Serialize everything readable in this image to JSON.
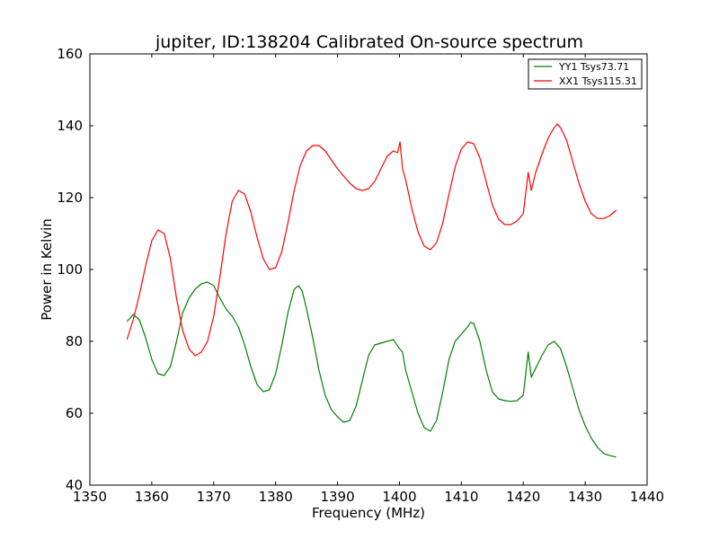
{
  "chart_data": {
    "type": "line",
    "title": "jupiter, ID:138204 Calibrated On-source spectrum",
    "xlabel": "Frequency (MHz)",
    "ylabel": "Power in Kelvin",
    "xlim": [
      1350,
      1440
    ],
    "ylim": [
      40,
      160
    ],
    "xticks": [
      1350,
      1360,
      1370,
      1380,
      1390,
      1400,
      1410,
      1420,
      1430,
      1440
    ],
    "yticks": [
      40,
      60,
      80,
      100,
      120,
      140,
      160
    ],
    "grid": false,
    "legend_position": "top-right",
    "series": [
      {
        "name": "YY1 Tsys73.71",
        "color": "#008000",
        "points": [
          [
            1356,
            85.5
          ],
          [
            1357,
            87.5
          ],
          [
            1358,
            86
          ],
          [
            1359,
            81
          ],
          [
            1360,
            75
          ],
          [
            1361,
            71
          ],
          [
            1362,
            70.5
          ],
          [
            1363,
            73
          ],
          [
            1364,
            80
          ],
          [
            1365,
            88
          ],
          [
            1366,
            92
          ],
          [
            1367,
            94.5
          ],
          [
            1368,
            96
          ],
          [
            1369,
            96.5
          ],
          [
            1370,
            95.5
          ],
          [
            1371,
            92
          ],
          [
            1372,
            89
          ],
          [
            1373,
            87
          ],
          [
            1374,
            84
          ],
          [
            1375,
            79
          ],
          [
            1376,
            73
          ],
          [
            1377,
            68
          ],
          [
            1378,
            66
          ],
          [
            1379,
            66.5
          ],
          [
            1380,
            71
          ],
          [
            1381,
            79
          ],
          [
            1382,
            88
          ],
          [
            1383,
            94.5
          ],
          [
            1383.7,
            95.5
          ],
          [
            1384.3,
            94
          ],
          [
            1385,
            89
          ],
          [
            1386,
            81
          ],
          [
            1387,
            72
          ],
          [
            1388,
            65
          ],
          [
            1389,
            61
          ],
          [
            1390,
            59
          ],
          [
            1391,
            57.5
          ],
          [
            1392,
            58
          ],
          [
            1393,
            62
          ],
          [
            1394,
            69
          ],
          [
            1395,
            76
          ],
          [
            1396,
            79
          ],
          [
            1397,
            79.5
          ],
          [
            1398,
            80
          ],
          [
            1399,
            80.5
          ],
          [
            1400,
            78
          ],
          [
            1400.5,
            77
          ],
          [
            1401,
            72
          ],
          [
            1402,
            66
          ],
          [
            1403,
            60
          ],
          [
            1404,
            56
          ],
          [
            1405,
            55
          ],
          [
            1406,
            58
          ],
          [
            1407,
            66
          ],
          [
            1408,
            75
          ],
          [
            1409,
            80
          ],
          [
            1410,
            82
          ],
          [
            1411,
            84
          ],
          [
            1411.5,
            85.3
          ],
          [
            1412,
            85
          ],
          [
            1413,
            80
          ],
          [
            1414,
            72
          ],
          [
            1415,
            66
          ],
          [
            1416,
            64
          ],
          [
            1417,
            63.5
          ],
          [
            1418,
            63.3
          ],
          [
            1419,
            63.5
          ],
          [
            1420,
            65
          ],
          [
            1420.8,
            77
          ],
          [
            1421.3,
            70
          ],
          [
            1422,
            72.5
          ],
          [
            1423,
            76
          ],
          [
            1424,
            79
          ],
          [
            1425,
            80
          ],
          [
            1426,
            78
          ],
          [
            1427,
            73
          ],
          [
            1428,
            67
          ],
          [
            1429,
            61
          ],
          [
            1430,
            56.5
          ],
          [
            1431,
            53
          ],
          [
            1432,
            50.5
          ],
          [
            1433,
            48.8
          ],
          [
            1434,
            48.2
          ],
          [
            1435,
            47.8
          ]
        ]
      },
      {
        "name": "XX1 Tsys115.31",
        "color": "#ff0000",
        "points": [
          [
            1356,
            80.5
          ],
          [
            1357,
            86
          ],
          [
            1358,
            93
          ],
          [
            1359,
            101
          ],
          [
            1360,
            108
          ],
          [
            1361,
            111
          ],
          [
            1362,
            110
          ],
          [
            1363,
            103
          ],
          [
            1364,
            92
          ],
          [
            1365,
            83
          ],
          [
            1366,
            78
          ],
          [
            1367,
            76
          ],
          [
            1368,
            77
          ],
          [
            1369,
            80
          ],
          [
            1370,
            87
          ],
          [
            1371,
            98
          ],
          [
            1372,
            110
          ],
          [
            1373,
            119
          ],
          [
            1374,
            122
          ],
          [
            1375,
            121
          ],
          [
            1376,
            116
          ],
          [
            1377,
            109
          ],
          [
            1378,
            103
          ],
          [
            1379,
            100
          ],
          [
            1380,
            100.5
          ],
          [
            1381,
            105
          ],
          [
            1382,
            113
          ],
          [
            1383,
            122
          ],
          [
            1384,
            129
          ],
          [
            1385,
            133
          ],
          [
            1386,
            134.5
          ],
          [
            1387,
            134.5
          ],
          [
            1388,
            133
          ],
          [
            1389,
            130.5
          ],
          [
            1390,
            128
          ],
          [
            1391,
            126
          ],
          [
            1392,
            124
          ],
          [
            1393,
            122.5
          ],
          [
            1394,
            122
          ],
          [
            1395,
            122.5
          ],
          [
            1396,
            124.5
          ],
          [
            1397,
            128
          ],
          [
            1398,
            131.5
          ],
          [
            1399,
            133
          ],
          [
            1399.7,
            132.5
          ],
          [
            1400.1,
            135.5
          ],
          [
            1400.5,
            128
          ],
          [
            1401,
            125
          ],
          [
            1402,
            117
          ],
          [
            1403,
            110.5
          ],
          [
            1404,
            106.5
          ],
          [
            1405,
            105.5
          ],
          [
            1406,
            107.5
          ],
          [
            1407,
            113
          ],
          [
            1408,
            121
          ],
          [
            1409,
            128.5
          ],
          [
            1410,
            133.5
          ],
          [
            1411,
            135.5
          ],
          [
            1412,
            135
          ],
          [
            1413,
            131
          ],
          [
            1414,
            124.5
          ],
          [
            1415,
            118
          ],
          [
            1416,
            114
          ],
          [
            1417,
            112.5
          ],
          [
            1418,
            112.5
          ],
          [
            1419,
            113.5
          ],
          [
            1420,
            115.5
          ],
          [
            1420.8,
            127
          ],
          [
            1421.3,
            122
          ],
          [
            1422,
            127
          ],
          [
            1423,
            132
          ],
          [
            1424,
            136.5
          ],
          [
            1425,
            139.5
          ],
          [
            1425.5,
            140.5
          ],
          [
            1426,
            139.5
          ],
          [
            1427,
            136
          ],
          [
            1428,
            130
          ],
          [
            1429,
            124
          ],
          [
            1430,
            119
          ],
          [
            1431,
            115.5
          ],
          [
            1432,
            114.2
          ],
          [
            1433,
            114.2
          ],
          [
            1434,
            115
          ],
          [
            1435,
            116.5
          ]
        ]
      }
    ]
  }
}
